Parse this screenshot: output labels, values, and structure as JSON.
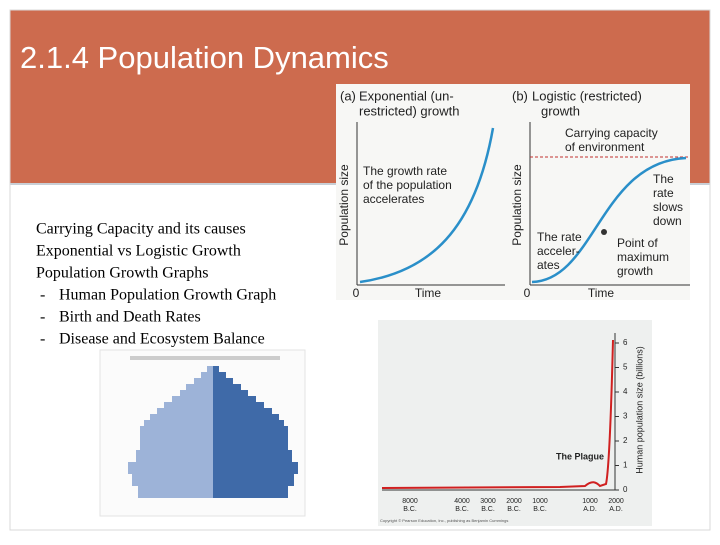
{
  "header": {
    "title": "2.1.4 Population Dynamics"
  },
  "outline": {
    "items": [
      "Carrying Capacity and its causes",
      "Exponential vs Logistic Growth",
      "Population Growth Graphs"
    ],
    "subitems": [
      "Human Population Growth Graph",
      "Birth and Death Rates",
      "Disease and Ecosystem Balance"
    ]
  },
  "growth_figure": {
    "panel_a": {
      "letter": "(a)",
      "title_lines": [
        "Exponential (un-",
        "restricted) growth"
      ],
      "y_label": "Population size",
      "x_label": "Time",
      "origin": "0",
      "note_lines": [
        "The growth rate",
        "of the population",
        "accelerates"
      ]
    },
    "panel_b": {
      "letter": "(b)",
      "title_lines": [
        "Logistic (restricted)",
        "growth"
      ],
      "y_label": "Population size",
      "x_label": "Time",
      "origin": "0",
      "capacity_lines": [
        "Carrying capacity",
        "of environment"
      ],
      "slows_lines": [
        "The",
        "rate",
        "slows",
        "down"
      ],
      "accelerates_lines": [
        "The rate",
        "acceler-",
        "ates"
      ],
      "point_lines": [
        "Point of",
        "maximum",
        "growth"
      ]
    }
  },
  "human_figure": {
    "y_label": "Human population size (billions)",
    "y_tick_labels": [
      "0",
      "1",
      "2",
      "3",
      "4",
      "5",
      "6"
    ],
    "x_tick_labels": [
      [
        "8000",
        "B.C."
      ],
      [
        "4000",
        "B.C."
      ],
      [
        "3000",
        "B.C."
      ],
      [
        "2000",
        "B.C."
      ],
      [
        "1000",
        "B.C."
      ],
      [
        "1000",
        "A.D."
      ],
      [
        "2000",
        "A.D."
      ]
    ],
    "annotation": "The Plague",
    "credit": "Copyright © Pearson Education, Inc., publishing as Benjamin Cummings"
  }
}
